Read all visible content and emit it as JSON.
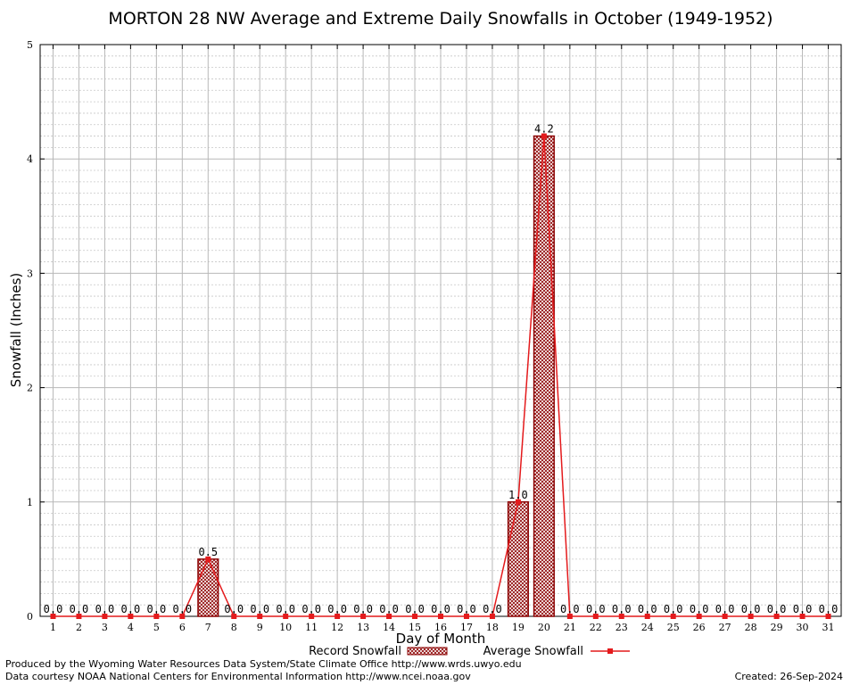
{
  "chart_data": {
    "type": "bar",
    "title": "MORTON 28 NW Average and Extreme Daily Snowfalls in October (1949-1952)",
    "xlabel": "Day of Month",
    "ylabel": "Snowfall (Inches)",
    "ylim": [
      0,
      5
    ],
    "yticks": [
      "0",
      "1",
      "2",
      "3",
      "4",
      "5"
    ],
    "categories": [
      "1",
      "2",
      "3",
      "4",
      "5",
      "6",
      "7",
      "8",
      "9",
      "10",
      "11",
      "12",
      "13",
      "14",
      "15",
      "16",
      "17",
      "18",
      "19",
      "20",
      "21",
      "22",
      "23",
      "24",
      "25",
      "26",
      "27",
      "28",
      "29",
      "30",
      "31"
    ],
    "grid": true,
    "series": [
      {
        "name": "Record Snowfall",
        "kind": "bar",
        "color": "#8b0000",
        "values": [
          0,
          0,
          0,
          0,
          0,
          0,
          0.5,
          0,
          0,
          0,
          0,
          0,
          0,
          0,
          0,
          0,
          0,
          0,
          1.0,
          4.2,
          0,
          0,
          0,
          0,
          0,
          0,
          0,
          0,
          0,
          0,
          0
        ]
      },
      {
        "name": "Average Snowfall",
        "kind": "line",
        "color": "#e41a1c",
        "values": [
          0,
          0,
          0,
          0,
          0,
          0,
          0.5,
          0,
          0,
          0,
          0,
          0,
          0,
          0,
          0,
          0,
          0,
          0,
          1.0,
          4.2,
          0,
          0,
          0,
          0,
          0,
          0,
          0,
          0,
          0,
          0,
          0
        ]
      }
    ],
    "data_labels": [
      "0.0",
      "0.0",
      "0.0",
      "0.0",
      "0.0",
      "0.0",
      "0.5",
      "0.0",
      "0.0",
      "0.0",
      "0.0",
      "0.0",
      "0.0",
      "0.0",
      "0.0",
      "0.0",
      "0.0",
      "0.0",
      "1.0",
      "4.2",
      "0.0",
      "0.0",
      "0.0",
      "0.0",
      "0.0",
      "0.0",
      "0.0",
      "0.0",
      "0.0",
      "0.0",
      "0.0"
    ],
    "legend": {
      "position": "bottom"
    }
  },
  "footer": {
    "produced_by": "Produced by the Wyoming Water Resources Data System/State Climate Office http://www.wrds.uwyo.edu",
    "courtesy": "Data courtesy NOAA National Centers for Environmental Information http://www.ncei.noaa.gov",
    "created": "Created:  26-Sep-2024"
  }
}
